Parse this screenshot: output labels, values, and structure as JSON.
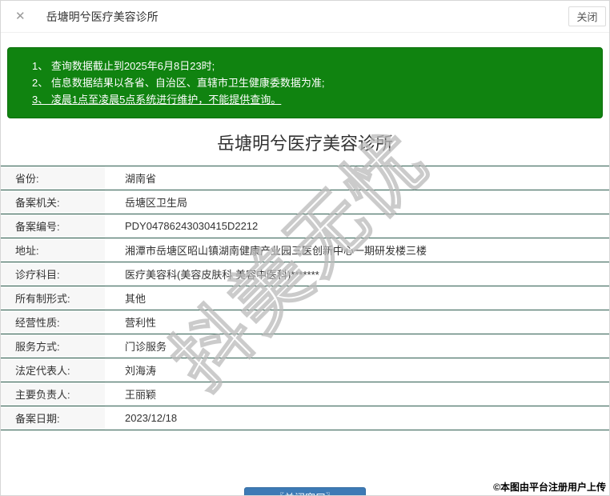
{
  "header": {
    "title": "岳塘明兮医疗美容诊所",
    "close_button": "关闭"
  },
  "notice": {
    "lines": [
      "1、 查询数据截止到2025年6月8日23时;",
      "2、 信息数据结果以各省、自治区、直辖市卫生健康委数据为准;",
      "3、 凌晨1点至凌晨5点系统进行维护，不能提供查询。"
    ]
  },
  "main": {
    "title": "岳塘明兮医疗美容诊所",
    "fields": [
      {
        "label": "省份:",
        "value": "湖南省"
      },
      {
        "label": "备案机关:",
        "value": "岳塘区卫生局"
      },
      {
        "label": "备案编号:",
        "value": "PDY04786243030415D2212"
      },
      {
        "label": "地址:",
        "value": "湘潭市岳塘区昭山镇湖南健康产业园三医创新中心一期研发楼三楼"
      },
      {
        "label": "诊疗科目:",
        "value": "医疗美容科(美容皮肤科 美容中医科)*******"
      },
      {
        "label": "所有制形式:",
        "value": "其他"
      },
      {
        "label": "经营性质:",
        "value": "营利性"
      },
      {
        "label": "服务方式:",
        "value": "门诊服务"
      },
      {
        "label": "法定代表人:",
        "value": "刘海涛"
      },
      {
        "label": "主要负责人:",
        "value": "王丽颖"
      },
      {
        "label": "备案日期:",
        "value": "2023/12/18"
      }
    ]
  },
  "footer": {
    "close_window_button": "〖关闭窗口〗",
    "copyright": "©本图由平台注册用户上传"
  },
  "watermark": "抖美无忧",
  "colors": {
    "notice_bg": "#108310",
    "row_border": "#2e5e50",
    "label_bg": "#f7f7f7",
    "button_blue": "#3d7ab5"
  }
}
